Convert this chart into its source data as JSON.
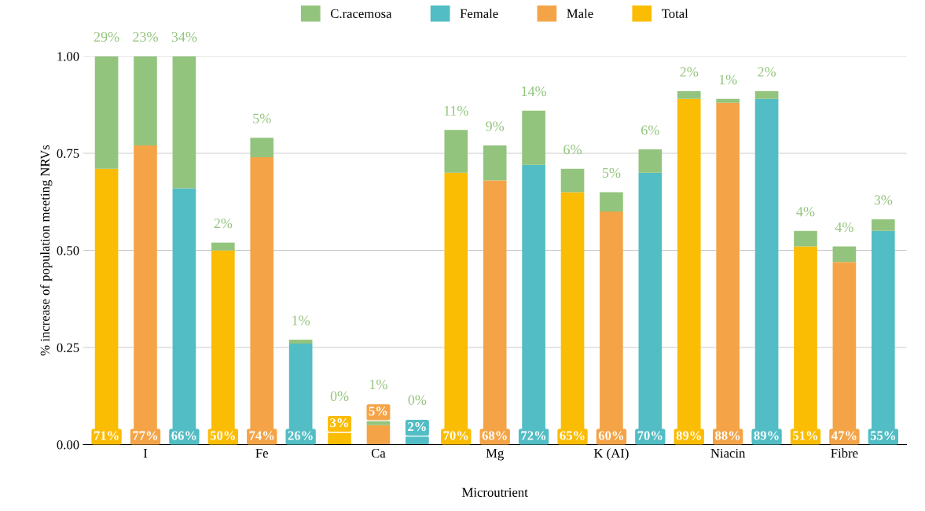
{
  "chart_data": {
    "type": "bar",
    "stacked": true,
    "xlabel": "Microutrient",
    "ylabel": "% increase of population meeting NRVs",
    "categories": [
      null,
      "I",
      null,
      null,
      "Fe",
      null,
      null,
      "Ca",
      null,
      null,
      "Mg",
      null,
      null,
      "K (AI)",
      null,
      null,
      "Niacin",
      null,
      null,
      "Fibre",
      null
    ],
    "ylim": [
      0,
      1
    ],
    "yticks": [
      {
        "value": 0,
        "label": "0.00"
      },
      {
        "value": 0.25,
        "label": "0.25"
      },
      {
        "value": 0.5,
        "label": "0.50"
      },
      {
        "value": 0.75,
        "label": "0.75"
      },
      {
        "value": 1,
        "label": "1.00"
      }
    ],
    "grid": "y",
    "legend": "top",
    "series": [
      {
        "name": "Total",
        "color": "#fbbc04",
        "values": [
          0.71,
          null,
          null,
          0.5,
          null,
          null,
          0.03,
          null,
          null,
          0.7,
          null,
          null,
          0.65,
          null,
          null,
          0.89,
          null,
          null,
          0.51,
          null,
          null
        ],
        "value_labels": [
          "71%",
          null,
          null,
          "50%",
          null,
          null,
          "3%",
          null,
          null,
          "70%",
          null,
          null,
          "65%",
          null,
          null,
          "89%",
          null,
          null,
          "51%",
          null,
          null
        ]
      },
      {
        "name": "Male",
        "color": "#f4a447",
        "values": [
          null,
          0.77,
          null,
          null,
          0.74,
          null,
          null,
          0.05,
          null,
          null,
          0.68,
          null,
          null,
          0.6,
          null,
          null,
          0.88,
          null,
          null,
          0.47,
          null
        ],
        "value_labels": [
          null,
          "77%",
          null,
          null,
          "74%",
          null,
          null,
          "5%",
          null,
          null,
          "68%",
          null,
          null,
          "60%",
          null,
          null,
          "88%",
          null,
          null,
          "47%",
          null
        ]
      },
      {
        "name": "Female",
        "color": "#52bdc4",
        "values": [
          null,
          null,
          0.66,
          null,
          null,
          0.26,
          null,
          null,
          0.02,
          null,
          null,
          0.72,
          null,
          null,
          0.7,
          null,
          null,
          0.89,
          null,
          null,
          0.55
        ],
        "value_labels": [
          null,
          null,
          "66%",
          null,
          null,
          "26%",
          null,
          null,
          "2%",
          null,
          null,
          "72%",
          null,
          null,
          "70%",
          null,
          null,
          "89%",
          null,
          null,
          "55%"
        ]
      },
      {
        "name": "C.racemosa",
        "color": "#93c47d",
        "values": [
          0.29,
          0.23,
          0.34,
          0.02,
          0.05,
          0.01,
          0,
          0.01,
          0,
          0.11,
          0.09,
          0.14,
          0.06,
          0.05,
          0.06,
          0.02,
          0.01,
          0.02,
          0.04,
          0.04,
          0.03
        ],
        "value_labels": [
          "29%",
          "23%",
          "34%",
          "2%",
          "5%",
          "1%",
          "0%",
          "1%",
          "0%",
          "11%",
          "9%",
          "14%",
          "6%",
          "5%",
          "6%",
          "2%",
          "1%",
          "2%",
          "4%",
          "4%",
          "3%"
        ]
      }
    ]
  }
}
